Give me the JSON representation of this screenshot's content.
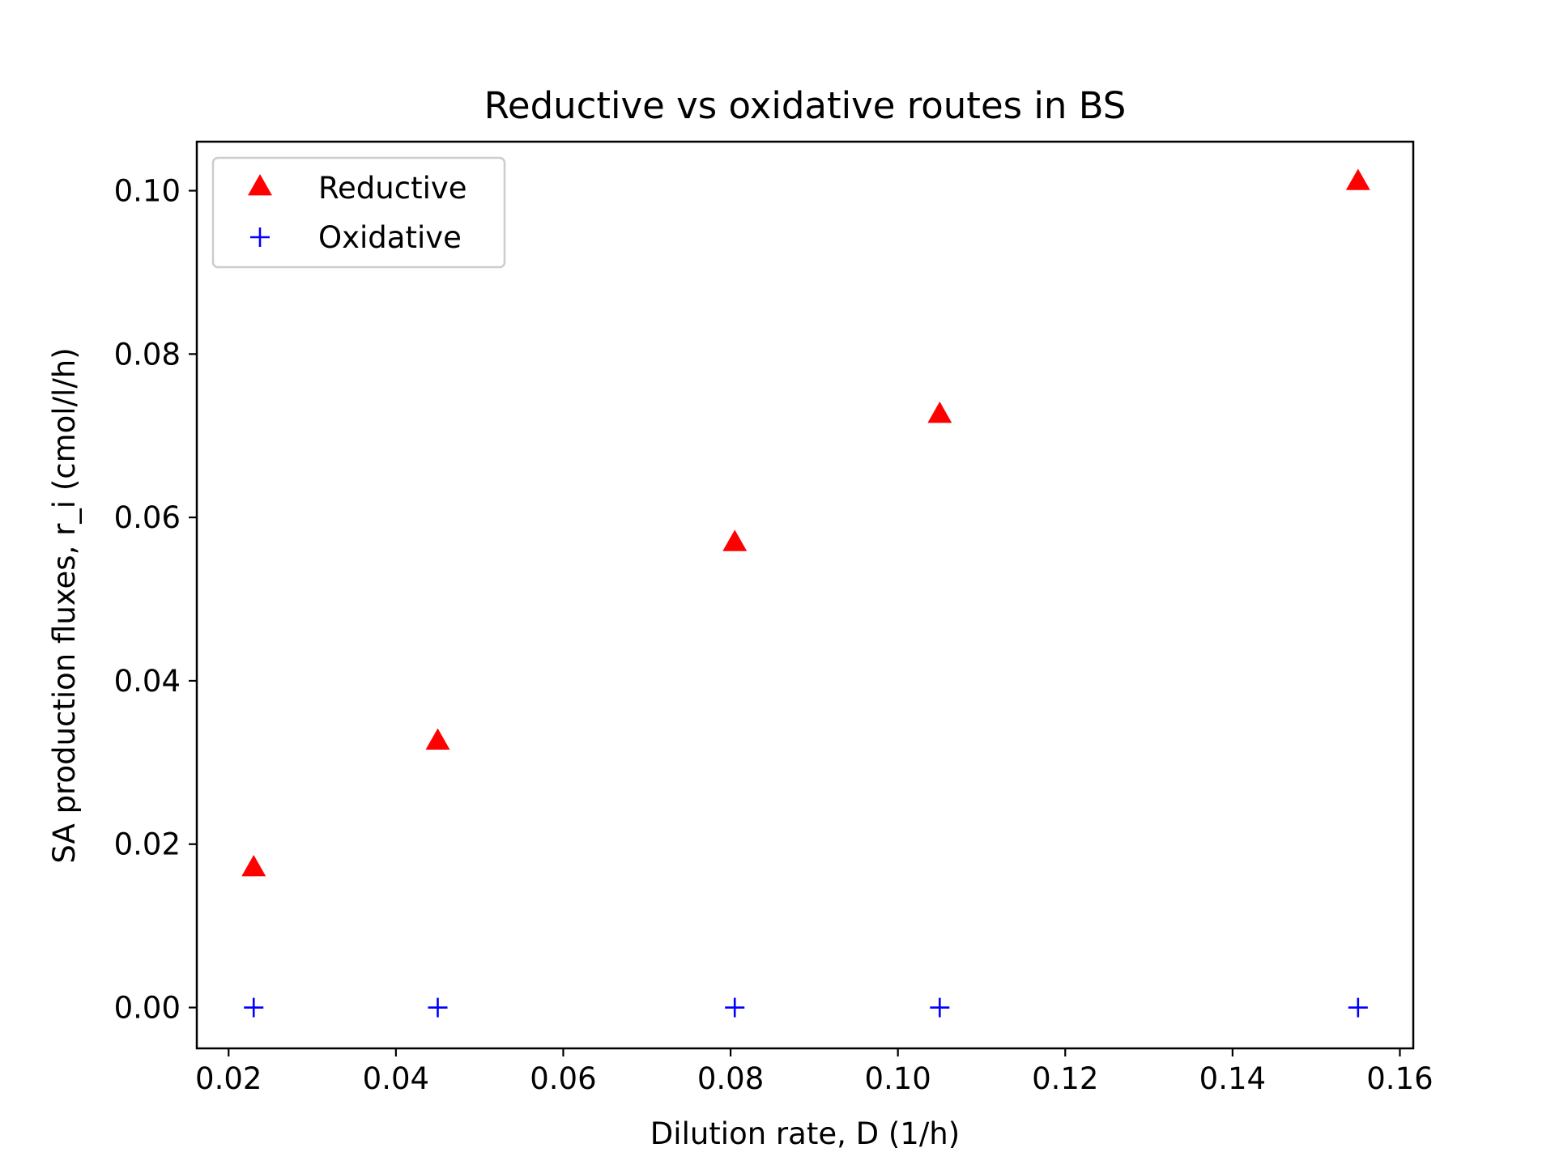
{
  "chart_data": {
    "type": "scatter",
    "title": "Reductive vs oxidative routes in BS",
    "xlabel": "Dilution rate, D (1/h)",
    "ylabel": "SA production fluxes, r_i (cmol/l/h)",
    "xlim": [
      0.0162,
      0.1616
    ],
    "ylim": [
      -0.005,
      0.106
    ],
    "x_ticks": [
      0.02,
      0.04,
      0.06,
      0.08,
      0.1,
      0.12,
      0.14,
      0.16
    ],
    "x_tick_labels": [
      "0.02",
      "0.04",
      "0.06",
      "0.08",
      "0.10",
      "0.12",
      "0.14",
      "0.16"
    ],
    "y_ticks": [
      0.0,
      0.02,
      0.04,
      0.06,
      0.08,
      0.1
    ],
    "y_tick_labels": [
      "0.00",
      "0.02",
      "0.04",
      "0.06",
      "0.08",
      "0.10"
    ],
    "grid": false,
    "legend_position": "top-left",
    "series": [
      {
        "name": "Reductive",
        "marker": "triangle-up",
        "color": "#ff0000",
        "x": [
          0.023,
          0.045,
          0.0805,
          0.105,
          0.155
        ],
        "y": [
          0.017,
          0.0325,
          0.0568,
          0.0725,
          0.101
        ]
      },
      {
        "name": "Oxidative",
        "marker": "plus",
        "color": "#0000ff",
        "x": [
          0.023,
          0.045,
          0.0805,
          0.105,
          0.155
        ],
        "y": [
          0.0,
          0.0,
          0.0,
          0.0,
          0.0
        ]
      }
    ]
  }
}
